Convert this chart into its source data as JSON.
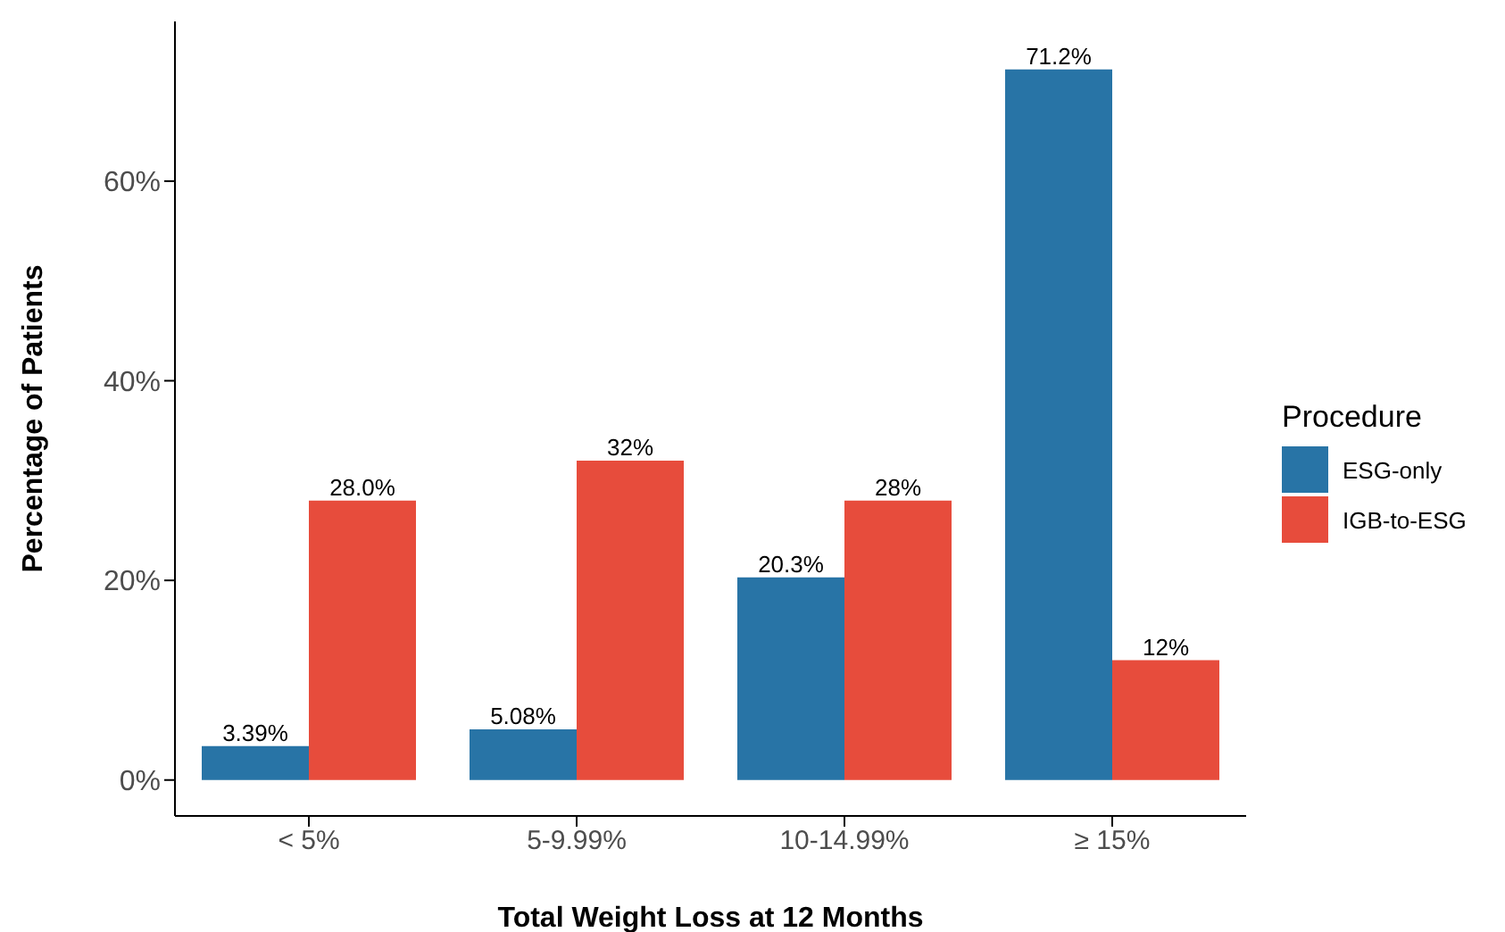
{
  "chart_data": {
    "type": "bar",
    "xlabel": "Total Weight Loss at 12 Months",
    "ylabel": "Percentage of Patients",
    "legend_title": "Procedure",
    "categories": [
      "< 5%",
      "5-9.99%",
      "10-14.99%",
      "≥ 15%"
    ],
    "series": [
      {
        "name": "ESG-only",
        "color": "#2874a6",
        "values": [
          3.39,
          5.08,
          20.3,
          71.2
        ],
        "value_labels": [
          "3.39%",
          "5.08%",
          "20.3%",
          "71.2%"
        ]
      },
      {
        "name": "IGB-to-ESG",
        "color": "#e74c3c",
        "values": [
          28.0,
          32,
          28,
          12
        ],
        "value_labels": [
          "28.0%",
          "32%",
          "28%",
          "12%"
        ]
      }
    ],
    "ylim": [
      -3.6,
      76
    ],
    "yticks": [
      {
        "value": 0,
        "label": "0%"
      },
      {
        "value": 20,
        "label": "20%"
      },
      {
        "value": 40,
        "label": "40%"
      },
      {
        "value": 60,
        "label": "60%"
      }
    ],
    "grid": false,
    "legend": "right"
  }
}
